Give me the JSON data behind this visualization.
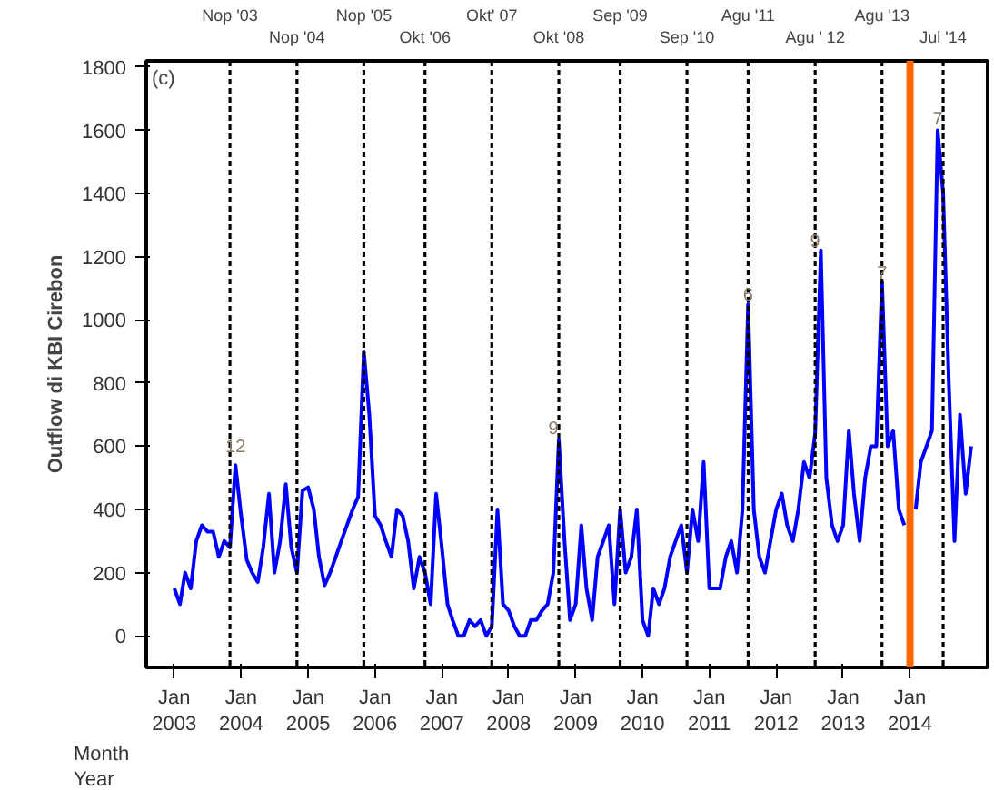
{
  "chart_data": {
    "type": "line",
    "ylabel": "Outflow di KBI Cirebon",
    "annotations": [
      "(c)",
      "Month",
      "Year",
      {
        "text": "12",
        "x": "2003-12",
        "y": 600
      },
      {
        "text": "9",
        "x": "2008-09",
        "y": 660
      },
      {
        "text": "6",
        "x": "2011-08",
        "y": 1080
      },
      {
        "text": "9",
        "x": "2012-08",
        "y": 1250
      },
      {
        "text": "7",
        "x": "2013-08",
        "y": 1150
      },
      {
        "text": "7",
        "x": "2014-06",
        "y": 1640
      }
    ],
    "x": [
      "2003-01",
      "2003-02",
      "2003-03",
      "2003-04",
      "2003-05",
      "2003-06",
      "2003-07",
      "2003-08",
      "2003-09",
      "2003-10",
      "2003-11",
      "2003-12",
      "2004-01",
      "2004-02",
      "2004-03",
      "2004-04",
      "2004-05",
      "2004-06",
      "2004-07",
      "2004-08",
      "2004-09",
      "2004-10",
      "2004-11",
      "2004-12",
      "2005-01",
      "2005-02",
      "2005-03",
      "2005-04",
      "2005-05",
      "2005-06",
      "2005-07",
      "2005-08",
      "2005-09",
      "2005-10",
      "2005-11",
      "2005-12",
      "2006-01",
      "2006-02",
      "2006-03",
      "2006-04",
      "2006-05",
      "2006-06",
      "2006-07",
      "2006-08",
      "2006-09",
      "2006-10",
      "2006-11",
      "2006-12",
      "2007-01",
      "2007-02",
      "2007-03",
      "2007-04",
      "2007-05",
      "2007-06",
      "2007-07",
      "2007-08",
      "2007-09",
      "2007-10",
      "2007-11",
      "2007-12",
      "2008-01",
      "2008-02",
      "2008-03",
      "2008-04",
      "2008-05",
      "2008-06",
      "2008-07",
      "2008-08",
      "2008-09",
      "2008-10",
      "2008-11",
      "2008-12",
      "2009-01",
      "2009-02",
      "2009-03",
      "2009-04",
      "2009-05",
      "2009-06",
      "2009-07",
      "2009-08",
      "2009-09",
      "2009-10",
      "2009-11",
      "2009-12",
      "2010-01",
      "2010-02",
      "2010-03",
      "2010-04",
      "2010-05",
      "2010-06",
      "2010-07",
      "2010-08",
      "2010-09",
      "2010-10",
      "2010-11",
      "2010-12",
      "2011-01",
      "2011-02",
      "2011-03",
      "2011-04",
      "2011-05",
      "2011-06",
      "2011-07",
      "2011-08",
      "2011-09",
      "2011-10",
      "2011-11",
      "2011-12",
      "2012-01",
      "2012-02",
      "2012-03",
      "2012-04",
      "2012-05",
      "2012-06",
      "2012-07",
      "2012-08",
      "2012-09",
      "2012-10",
      "2012-11",
      "2012-12",
      "2013-01",
      "2013-02",
      "2013-03",
      "2013-04",
      "2013-05",
      "2013-06",
      "2013-07",
      "2013-08",
      "2013-09",
      "2013-10",
      "2013-11",
      "2013-12",
      "2014-01",
      "2014-02",
      "2014-03",
      "2014-04",
      "2014-05",
      "2014-06",
      "2014-07",
      "2014-08",
      "2014-09",
      "2014-10",
      "2014-11",
      "2014-12"
    ],
    "series": [
      {
        "color": "#0000ff",
        "values": [
          150,
          100,
          200,
          150,
          300,
          350,
          330,
          330,
          250,
          300,
          280,
          540,
          380,
          240,
          200,
          170,
          280,
          450,
          200,
          300,
          480,
          280,
          200,
          460,
          470,
          400,
          250,
          160,
          200,
          250,
          300,
          350,
          400,
          440,
          900,
          700,
          380,
          350,
          300,
          250,
          400,
          380,
          300,
          150,
          250,
          200,
          100,
          450,
          280,
          100,
          50,
          0,
          0,
          50,
          30,
          50,
          0,
          30,
          400,
          100,
          80,
          30,
          0,
          0,
          50,
          50,
          80,
          100,
          200,
          620,
          300,
          50,
          100,
          350,
          150,
          50,
          250,
          300,
          350,
          100,
          400,
          200,
          250,
          400,
          50,
          0,
          150,
          100,
          150,
          250,
          300,
          350,
          200,
          400,
          300,
          550,
          150,
          150,
          150,
          250,
          300,
          200,
          400,
          1050,
          400,
          250,
          200,
          300,
          400,
          450,
          350,
          300,
          400,
          550,
          500,
          640,
          1220,
          500,
          350,
          300,
          350,
          650,
          450,
          300,
          500,
          600,
          600,
          1120,
          600,
          650,
          400,
          350,
          null,
          400,
          550,
          600,
          650,
          1600,
          1400,
          800,
          300,
          700,
          450,
          600
        ]
      }
    ],
    "ylim": [
      -100,
      1820
    ],
    "yticks": [
      0,
      200,
      400,
      600,
      800,
      1000,
      1200,
      1400,
      1600,
      1800
    ],
    "xlim": [
      "2002-08",
      "2015-03"
    ],
    "xticks": [
      {
        "value": "2003-01",
        "label": "Jan\n2003"
      },
      {
        "value": "2004-01",
        "label": "Jan\n2004"
      },
      {
        "value": "2005-01",
        "label": "Jan\n2005"
      },
      {
        "value": "2006-01",
        "label": "Jan\n2006"
      },
      {
        "value": "2007-01",
        "label": "Jan\n2007"
      },
      {
        "value": "2008-01",
        "label": "Jan\n2008"
      },
      {
        "value": "2009-01",
        "label": "Jan\n2009"
      },
      {
        "value": "2010-01",
        "label": "Jan\n2010"
      },
      {
        "value": "2011-01",
        "label": "Jan\n2011"
      },
      {
        "value": "2012-01",
        "label": "Jan\n2012"
      },
      {
        "value": "2013-01",
        "label": "Jan\n2013"
      },
      {
        "value": "2014-01",
        "label": "Jan\n2014"
      }
    ],
    "ref_lines": [
      {
        "axis": "x",
        "value": "2003-11",
        "label": "Nop '03",
        "color": "#000000",
        "line_style": "dashed"
      },
      {
        "axis": "x",
        "value": "2004-11",
        "label": "Nop '04",
        "color": "#000000",
        "line_style": "dashed"
      },
      {
        "axis": "x",
        "value": "2005-11",
        "label": "Nop '05",
        "color": "#000000",
        "line_style": "dashed"
      },
      {
        "axis": "x",
        "value": "2006-10",
        "label": "Okt '06",
        "color": "#000000",
        "line_style": "dashed"
      },
      {
        "axis": "x",
        "value": "2007-10",
        "label": "Okt' 07",
        "color": "#000000",
        "line_style": "dashed"
      },
      {
        "axis": "x",
        "value": "2008-10",
        "label": "Okt '08",
        "color": "#000000",
        "line_style": "dashed"
      },
      {
        "axis": "x",
        "value": "2009-09",
        "label": "Sep '09",
        "color": "#000000",
        "line_style": "dashed"
      },
      {
        "axis": "x",
        "value": "2010-09",
        "label": "Sep '10",
        "color": "#000000",
        "line_style": "dashed"
      },
      {
        "axis": "x",
        "value": "2011-08",
        "label": "Agu '11",
        "color": "#000000",
        "line_style": "dashed"
      },
      {
        "axis": "x",
        "value": "2012-08",
        "label": "Agu ' 12",
        "color": "#000000",
        "line_style": "dashed"
      },
      {
        "axis": "x",
        "value": "2013-08",
        "label": "Agu '13",
        "color": "#000000",
        "line_style": "dashed"
      },
      {
        "axis": "x",
        "value": "2014-07",
        "label": "Jul '14",
        "color": "#000000",
        "line_style": "dashed"
      },
      {
        "axis": "x",
        "value": "2014-01",
        "label": null,
        "color": "#ff6600",
        "line_style": "solid"
      }
    ],
    "grid": false,
    "marker": "none",
    "line_style": "solid"
  }
}
